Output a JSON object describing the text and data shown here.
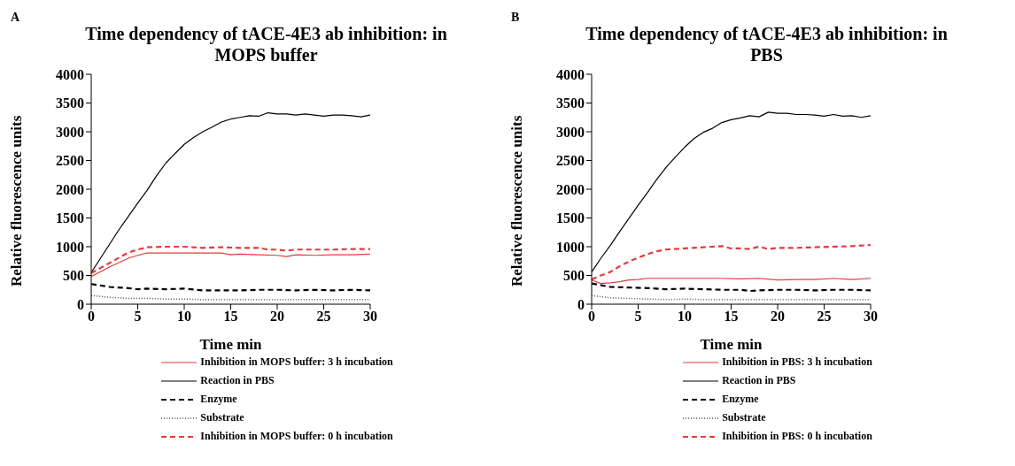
{
  "chart_data": [
    {
      "type": "line",
      "title": "Time dependency of tACE-4E3 ab inhibition: in MOPS buffer",
      "xlabel": "Time min",
      "ylabel": "Relative fluorescence units",
      "annotations": [
        "A"
      ],
      "xlim": [
        0,
        30
      ],
      "xticks": [
        0,
        5,
        10,
        15,
        20,
        25,
        30
      ],
      "ylim": [
        0,
        4000
      ],
      "yticks": [
        0,
        500,
        1000,
        1500,
        2000,
        2500,
        3000,
        3500,
        4000
      ],
      "grid": false,
      "legend": "bottom",
      "marker": "none",
      "series": [
        {
          "name": "Inhibition in MOPS buffer: 3 h incubation",
          "color": "#e8383d",
          "line_style": "solid",
          "x": [
            0,
            2,
            4,
            5,
            6,
            8,
            10,
            12,
            14,
            15,
            16,
            18,
            20,
            21,
            22,
            24,
            26,
            28,
            30
          ],
          "values": [
            480,
            650,
            800,
            850,
            890,
            890,
            890,
            890,
            890,
            860,
            870,
            860,
            850,
            830,
            860,
            850,
            860,
            860,
            870
          ]
        },
        {
          "name": "Reaction in PBS",
          "color": "#000000",
          "line_style": "solid",
          "x": [
            0,
            1,
            2,
            3,
            4,
            5,
            6,
            7,
            8,
            9,
            10,
            11,
            12,
            13,
            14,
            15,
            16,
            17,
            18,
            19,
            20,
            21,
            22,
            23,
            24,
            25,
            26,
            27,
            28,
            29,
            30
          ],
          "values": [
            550,
            800,
            1050,
            1300,
            1530,
            1760,
            1980,
            2230,
            2450,
            2620,
            2780,
            2900,
            3000,
            3080,
            3170,
            3220,
            3250,
            3280,
            3270,
            3330,
            3310,
            3310,
            3290,
            3310,
            3290,
            3270,
            3290,
            3290,
            3280,
            3260,
            3290
          ]
        },
        {
          "name": "Enzyme",
          "color": "#000000",
          "line_style": "dashed",
          "x": [
            0,
            2,
            4,
            5,
            6,
            8,
            10,
            12,
            14,
            16,
            18,
            20,
            22,
            24,
            26,
            28,
            30
          ],
          "values": [
            350,
            300,
            280,
            260,
            270,
            260,
            270,
            240,
            240,
            240,
            250,
            250,
            240,
            250,
            240,
            250,
            240
          ]
        },
        {
          "name": "Substrate",
          "color": "#555555",
          "line_style": "dotted",
          "x": [
            0,
            2,
            4,
            6,
            8,
            10,
            12,
            14,
            16,
            18,
            20,
            22,
            24,
            26,
            28,
            30
          ],
          "values": [
            150,
            120,
            100,
            100,
            90,
            90,
            80,
            80,
            80,
            80,
            80,
            80,
            80,
            80,
            80,
            80
          ]
        },
        {
          "name": "Inhibition in MOPS buffer: 0 h incubation",
          "color": "#e8383d",
          "line_style": "dashed",
          "x": [
            0,
            2,
            4,
            5,
            6,
            8,
            10,
            12,
            14,
            16,
            18,
            19,
            20,
            21,
            22,
            24,
            26,
            28,
            30
          ],
          "values": [
            540,
            720,
            900,
            950,
            990,
            1000,
            1000,
            980,
            990,
            980,
            980,
            950,
            950,
            930,
            950,
            950,
            950,
            960,
            960
          ]
        }
      ]
    },
    {
      "type": "line",
      "title": "Time dependency of tACE-4E3 ab inhibition: in PBS",
      "xlabel": "Time min",
      "ylabel": "Relative fluorescence units",
      "annotations": [
        "B"
      ],
      "xlim": [
        0,
        30
      ],
      "xticks": [
        0,
        5,
        10,
        15,
        20,
        25,
        30
      ],
      "ylim": [
        0,
        4000
      ],
      "yticks": [
        0,
        500,
        1000,
        1500,
        2000,
        2500,
        3000,
        3500,
        4000
      ],
      "grid": false,
      "legend": "bottom",
      "marker": "none",
      "series": [
        {
          "name": "Inhibition in PBS: 3 h incubation",
          "color": "#e8383d",
          "line_style": "solid",
          "x": [
            0,
            1,
            2,
            3,
            4,
            5,
            6,
            8,
            10,
            12,
            14,
            16,
            18,
            20,
            22,
            24,
            26,
            28,
            30
          ],
          "values": [
            420,
            360,
            370,
            390,
            420,
            430,
            450,
            450,
            450,
            450,
            450,
            440,
            450,
            420,
            430,
            430,
            450,
            430,
            450
          ]
        },
        {
          "name": "Reaction in PBS",
          "color": "#000000",
          "line_style": "solid",
          "x": [
            0,
            1,
            2,
            3,
            4,
            5,
            6,
            7,
            8,
            9,
            10,
            11,
            12,
            13,
            14,
            15,
            16,
            17,
            18,
            19,
            20,
            21,
            22,
            23,
            24,
            25,
            26,
            27,
            28,
            29,
            30
          ],
          "values": [
            560,
            800,
            1020,
            1260,
            1490,
            1720,
            1940,
            2170,
            2380,
            2560,
            2730,
            2880,
            2990,
            3060,
            3160,
            3210,
            3240,
            3280,
            3260,
            3340,
            3320,
            3320,
            3300,
            3300,
            3290,
            3270,
            3300,
            3270,
            3280,
            3250,
            3280
          ]
        },
        {
          "name": "Enzyme",
          "color": "#000000",
          "line_style": "dashed",
          "x": [
            0,
            2,
            4,
            6,
            8,
            10,
            12,
            14,
            16,
            17,
            18,
            20,
            22,
            24,
            26,
            28,
            30
          ],
          "values": [
            360,
            300,
            290,
            280,
            260,
            270,
            260,
            250,
            250,
            230,
            240,
            250,
            250,
            240,
            250,
            250,
            240
          ]
        },
        {
          "name": "Substrate",
          "color": "#555555",
          "line_style": "dotted",
          "x": [
            0,
            2,
            4,
            6,
            8,
            10,
            12,
            14,
            16,
            18,
            20,
            22,
            24,
            26,
            28,
            30
          ],
          "values": [
            150,
            110,
            100,
            90,
            80,
            90,
            80,
            80,
            80,
            80,
            80,
            80,
            80,
            80,
            80,
            80
          ]
        },
        {
          "name": "Inhibition in PBS: 0 h incubation",
          "color": "#e8383d",
          "line_style": "dashed",
          "x": [
            0,
            1,
            2,
            3,
            4,
            5,
            6,
            7,
            8,
            10,
            12,
            13,
            14,
            15,
            16,
            17,
            18,
            19,
            20,
            22,
            24,
            26,
            28,
            30
          ],
          "values": [
            430,
            500,
            560,
            660,
            740,
            810,
            870,
            920,
            950,
            970,
            990,
            1000,
            1010,
            970,
            970,
            960,
            1000,
            960,
            980,
            980,
            990,
            1000,
            1010,
            1030
          ]
        }
      ]
    }
  ]
}
